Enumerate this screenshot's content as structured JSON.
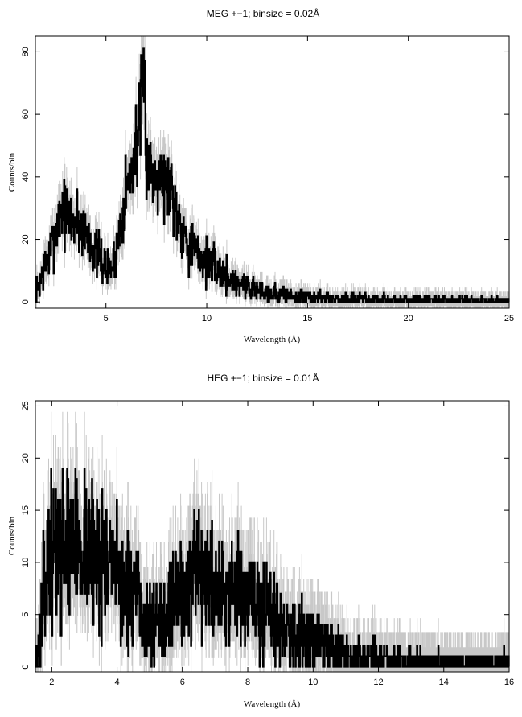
{
  "chart_data": [
    {
      "type": "line",
      "title": "MEG +−1; binsize = 0.02Å",
      "xlabel": "Wavelength (Å)",
      "ylabel": "Counts/bin",
      "xlim": [
        1.5,
        25
      ],
      "ylim": [
        -2,
        85
      ],
      "xticks": [
        5,
        10,
        15,
        20,
        25
      ],
      "yticks": [
        0,
        20,
        40,
        60,
        80
      ],
      "series": [
        {
          "style": "histogram-with-errorbars",
          "color": "#000000",
          "error_color": "#c8c8c8",
          "x": [
            1.6,
            1.8,
            2.0,
            2.2,
            2.4,
            2.6,
            2.8,
            3.0,
            3.2,
            3.4,
            3.6,
            3.8,
            4.0,
            4.2,
            4.4,
            4.6,
            4.8,
            5.0,
            5.2,
            5.4,
            5.6,
            5.8,
            6.0,
            6.2,
            6.4,
            6.6,
            6.8,
            6.9,
            7.0,
            7.2,
            7.4,
            7.6,
            7.8,
            8.0,
            8.2,
            8.4,
            8.6,
            8.8,
            9.0,
            9.2,
            9.4,
            9.6,
            9.8,
            10.0,
            10.4,
            10.8,
            11.2,
            11.6,
            12.0,
            12.5,
            13.0,
            13.5,
            14.0,
            15.0,
            16.0,
            17.0,
            18.0,
            19.0,
            20.0,
            21.0,
            22.0,
            23.0,
            24.0,
            25.0
          ],
          "y": [
            4,
            8,
            12,
            15,
            20,
            25,
            30,
            28,
            27,
            26,
            26,
            24,
            22,
            20,
            17,
            15,
            13,
            11,
            10,
            13,
            20,
            28,
            36,
            40,
            46,
            55,
            62,
            74,
            48,
            42,
            40,
            44,
            40,
            38,
            38,
            32,
            28,
            24,
            20,
            18,
            16,
            15,
            14,
            13,
            11,
            9,
            7,
            6,
            5,
            4,
            3,
            2.5,
            2,
            1.5,
            1,
            1,
            0.8,
            0.8,
            0.6,
            0.6,
            0.5,
            0.5,
            0.5,
            0.5
          ]
        }
      ]
    },
    {
      "type": "line",
      "title": "HEG +−1; binsize = 0.01Å",
      "xlabel": "Wavelength (Å)",
      "ylabel": "Counts/bin",
      "xlim": [
        1.5,
        16
      ],
      "ylim": [
        -0.5,
        25.5
      ],
      "xticks": [
        2,
        4,
        6,
        8,
        10,
        12,
        14,
        16
      ],
      "yticks": [
        0,
        5,
        10,
        15,
        20,
        25
      ],
      "series": [
        {
          "style": "histogram-with-errorbars",
          "color": "#000000",
          "error_color": "#c8c8c8",
          "x": [
            1.5,
            1.6,
            1.7,
            1.8,
            1.9,
            2.0,
            2.2,
            2.4,
            2.6,
            2.8,
            3.0,
            3.2,
            3.4,
            3.6,
            3.8,
            4.0,
            4.2,
            4.4,
            4.6,
            4.8,
            5.0,
            5.2,
            5.4,
            5.6,
            5.8,
            6.0,
            6.2,
            6.4,
            6.6,
            6.8,
            7.0,
            7.2,
            7.4,
            7.6,
            7.8,
            8.0,
            8.2,
            8.4,
            8.6,
            8.8,
            9.0,
            9.2,
            9.4,
            9.6,
            9.8,
            10.0,
            10.4,
            10.8,
            11.2,
            11.6,
            12.0,
            12.5,
            13.0,
            13.5,
            14.0,
            14.5,
            15.0,
            15.5,
            16.0
          ],
          "y": [
            1,
            2,
            5,
            8,
            10,
            11,
            11,
            12,
            12,
            12,
            12,
            11,
            11,
            10,
            9,
            9,
            8,
            7,
            6,
            5,
            4,
            4,
            5,
            6,
            7,
            7,
            8,
            8,
            8,
            8,
            8,
            8,
            7,
            7,
            7,
            6,
            6,
            5,
            5,
            5,
            4,
            4,
            3,
            3,
            2.5,
            2.5,
            2,
            1.5,
            1,
            1,
            0.8,
            0.6,
            0.5,
            0.4,
            0.4,
            0.3,
            0.3,
            0.3,
            0.3
          ]
        }
      ]
    }
  ]
}
